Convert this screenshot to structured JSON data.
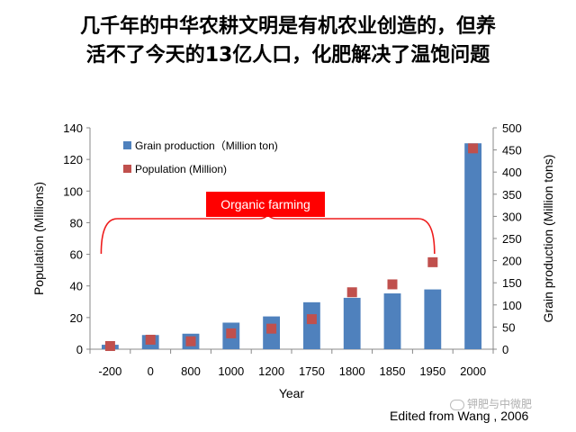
{
  "slide": {
    "title_line1": "几千年的中华农耕文明是有机农业创造的，但养",
    "title_line2": "活不了今天的13亿人口，化肥解决了温饱问题",
    "credit": "Edited from Wang , 2006",
    "watermark": "钾肥与中微肥"
  },
  "chart_data": {
    "type": "bar",
    "categories": [
      "-200",
      "0",
      "800",
      "1000",
      "1200",
      "1750",
      "1800",
      "1850",
      "1950",
      "2000"
    ],
    "xlabel": "Year",
    "ylabel_left": "Population (Millions)",
    "ylabel_right": "Grain production (Million tons)",
    "ylim_left": [
      0,
      140
    ],
    "yticks_left": [
      "0",
      "20",
      "40",
      "60",
      "80",
      "100",
      "120",
      "140"
    ],
    "ylim_right": [
      0,
      500
    ],
    "yticks_right": [
      "0",
      "50",
      "100",
      "150",
      "200",
      "250",
      "300",
      "350",
      "400",
      "450",
      "500"
    ],
    "series": [
      {
        "name": "Grain production（Million ton)",
        "kind": "bar",
        "axis": "right",
        "color": "#4f81bd",
        "values": [
          10,
          32,
          35,
          60,
          74,
          106,
          116,
          126,
          135,
          465
        ]
      },
      {
        "name": "Population (Million)",
        "kind": "marker",
        "axis": "left",
        "color": "#c0504d",
        "values": [
          2,
          6,
          5,
          10,
          13,
          19,
          36,
          41,
          55,
          127
        ]
      }
    ],
    "annotation": {
      "text": "Organic farming",
      "from_category": "-200",
      "to_category": "1950",
      "color": "#ee1c1c"
    },
    "legend": "top-left"
  }
}
